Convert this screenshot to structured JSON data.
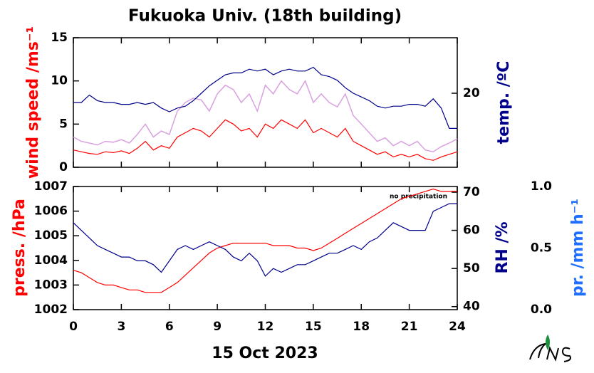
{
  "chart_data": [
    {
      "type": "line",
      "title": "Fukuoka Univ. (18th building)",
      "ylabel": "wind speed /ms⁻¹",
      "y2label": "temp. /ºC",
      "x": [
        0,
        0.5,
        1,
        1.5,
        2,
        2.5,
        3,
        3.5,
        4,
        4.5,
        5,
        5.5,
        6,
        6.5,
        7,
        7.5,
        8,
        8.5,
        9,
        9.5,
        10,
        10.5,
        11,
        11.5,
        12,
        12.5,
        13,
        13.5,
        14,
        14.5,
        15,
        15.5,
        16,
        16.5,
        17,
        17.5,
        18,
        18.5,
        19,
        19.5,
        20,
        20.5,
        21,
        21.5,
        22,
        22.5,
        23,
        23.5,
        24
      ],
      "xlim": [
        0,
        24
      ],
      "xticks": [
        0,
        3,
        6,
        9,
        12,
        15,
        18,
        21,
        24
      ],
      "ylim": [
        0,
        15
      ],
      "yticks": [
        0,
        5,
        10,
        15
      ],
      "y2lim": [
        16,
        23
      ],
      "y2ticks": [
        20
      ],
      "series": [
        {
          "color": "#d9a0e0",
          "values": [
            3.5,
            3,
            2.8,
            2.6,
            3,
            2.9,
            3.2,
            2.8,
            3.8,
            5,
            3.5,
            4.2,
            3.8,
            6.5,
            7.5,
            8,
            7.8,
            6.5,
            8.5,
            9.5,
            9,
            7.5,
            8.5,
            6.5,
            9.5,
            8.5,
            10,
            9,
            8.5,
            10,
            7.5,
            8.5,
            7.5,
            7,
            8.5,
            6,
            5,
            4,
            3,
            3.4,
            2.5,
            3,
            2.5,
            3,
            2,
            1.8,
            2.4,
            2.8,
            3.3
          ]
        },
        {
          "color": "#ff0000",
          "values": [
            2,
            1.8,
            1.6,
            1.5,
            1.8,
            1.7,
            1.9,
            1.6,
            2.2,
            3,
            2,
            2.5,
            2.2,
            3.5,
            4,
            4.5,
            4.2,
            3.5,
            4.5,
            5.5,
            5,
            4.2,
            4.5,
            3.5,
            5,
            4.5,
            5.5,
            5,
            4.5,
            5.5,
            4,
            4.5,
            4,
            3.5,
            4.5,
            3,
            2.5,
            2,
            1.5,
            1.8,
            1.2,
            1.5,
            1.2,
            1.5,
            1,
            0.8,
            1.2,
            1.5,
            1.8
          ]
        },
        {
          "color": "#00008b",
          "axis": "y2",
          "values": [
            19.5,
            19.5,
            19.9,
            19.6,
            19.5,
            19.5,
            19.4,
            19.4,
            19.5,
            19.4,
            19.5,
            19.2,
            19.0,
            19.2,
            19.3,
            19.6,
            20.0,
            20.4,
            20.7,
            21.0,
            21.1,
            21.1,
            21.3,
            21.2,
            21.3,
            21.0,
            21.2,
            21.3,
            21.2,
            21.2,
            21.4,
            21.0,
            20.9,
            20.7,
            20.3,
            20.0,
            19.8,
            19.6,
            19.3,
            19.2,
            19.3,
            19.3,
            19.4,
            19.4,
            19.3,
            19.7,
            19.2,
            18.1,
            18.1
          ]
        }
      ]
    },
    {
      "type": "line",
      "xlabel": "15 Oct 2023",
      "ylabel": "press. /hPa",
      "y2label": "RH /%",
      "y3label": "pr. /mm h⁻¹",
      "annotation": "no precipitation",
      "x": [
        0,
        0.5,
        1,
        1.5,
        2,
        2.5,
        3,
        3.5,
        4,
        4.5,
        5,
        5.5,
        6,
        6.5,
        7,
        7.5,
        8,
        8.5,
        9,
        9.5,
        10,
        10.5,
        11,
        11.5,
        12,
        12.5,
        13,
        13.5,
        14,
        14.5,
        15,
        15.5,
        16,
        16.5,
        17,
        17.5,
        18,
        18.5,
        19,
        19.5,
        20,
        20.5,
        21,
        21.5,
        22,
        22.5,
        23,
        23.5,
        24
      ],
      "xlim": [
        0,
        24
      ],
      "xticks": [
        0,
        3,
        6,
        9,
        12,
        15,
        18,
        21,
        24
      ],
      "ylim": [
        1002,
        1007
      ],
      "yticks": [
        1002,
        1003,
        1004,
        1005,
        1006,
        1007
      ],
      "y2lim": [
        39.2,
        71.5
      ],
      "y2ticks": [
        40,
        50,
        60,
        70
      ],
      "y3lim": [
        0,
        1
      ],
      "y3ticks": [
        {
          "value": 0,
          "label": "0.0"
        },
        {
          "value": 0.5,
          "label": "0.5"
        },
        {
          "value": 1,
          "label": "1.0"
        }
      ],
      "series": [
        {
          "color": "#ff0000",
          "values": [
            1003.6,
            1003.5,
            1003.3,
            1003.1,
            1003.0,
            1003.0,
            1002.9,
            1002.8,
            1002.8,
            1002.7,
            1002.7,
            1002.7,
            1002.9,
            1003.1,
            1003.4,
            1003.7,
            1004.0,
            1004.3,
            1004.5,
            1004.6,
            1004.7,
            1004.7,
            1004.7,
            1004.7,
            1004.7,
            1004.6,
            1004.6,
            1004.6,
            1004.5,
            1004.5,
            1004.4,
            1004.5,
            1004.7,
            1004.9,
            1005.1,
            1005.3,
            1005.5,
            1005.7,
            1005.9,
            1006.1,
            1006.3,
            1006.5,
            1006.6,
            1006.7,
            1006.8,
            1006.9,
            1006.8,
            1006.8,
            1006.8
          ]
        },
        {
          "color": "#00008b",
          "axis": "y2",
          "values": [
            62,
            60,
            58,
            56,
            55,
            54,
            53,
            53,
            52,
            52,
            51,
            49,
            52,
            55,
            56,
            55,
            56,
            57,
            56,
            55,
            53,
            52,
            54,
            52,
            48,
            50,
            49,
            50,
            51,
            51,
            52,
            53,
            54,
            54,
            55,
            56,
            55,
            57,
            58,
            60,
            62,
            61,
            60,
            60,
            60,
            65,
            66,
            67,
            67
          ]
        }
      ]
    }
  ]
}
